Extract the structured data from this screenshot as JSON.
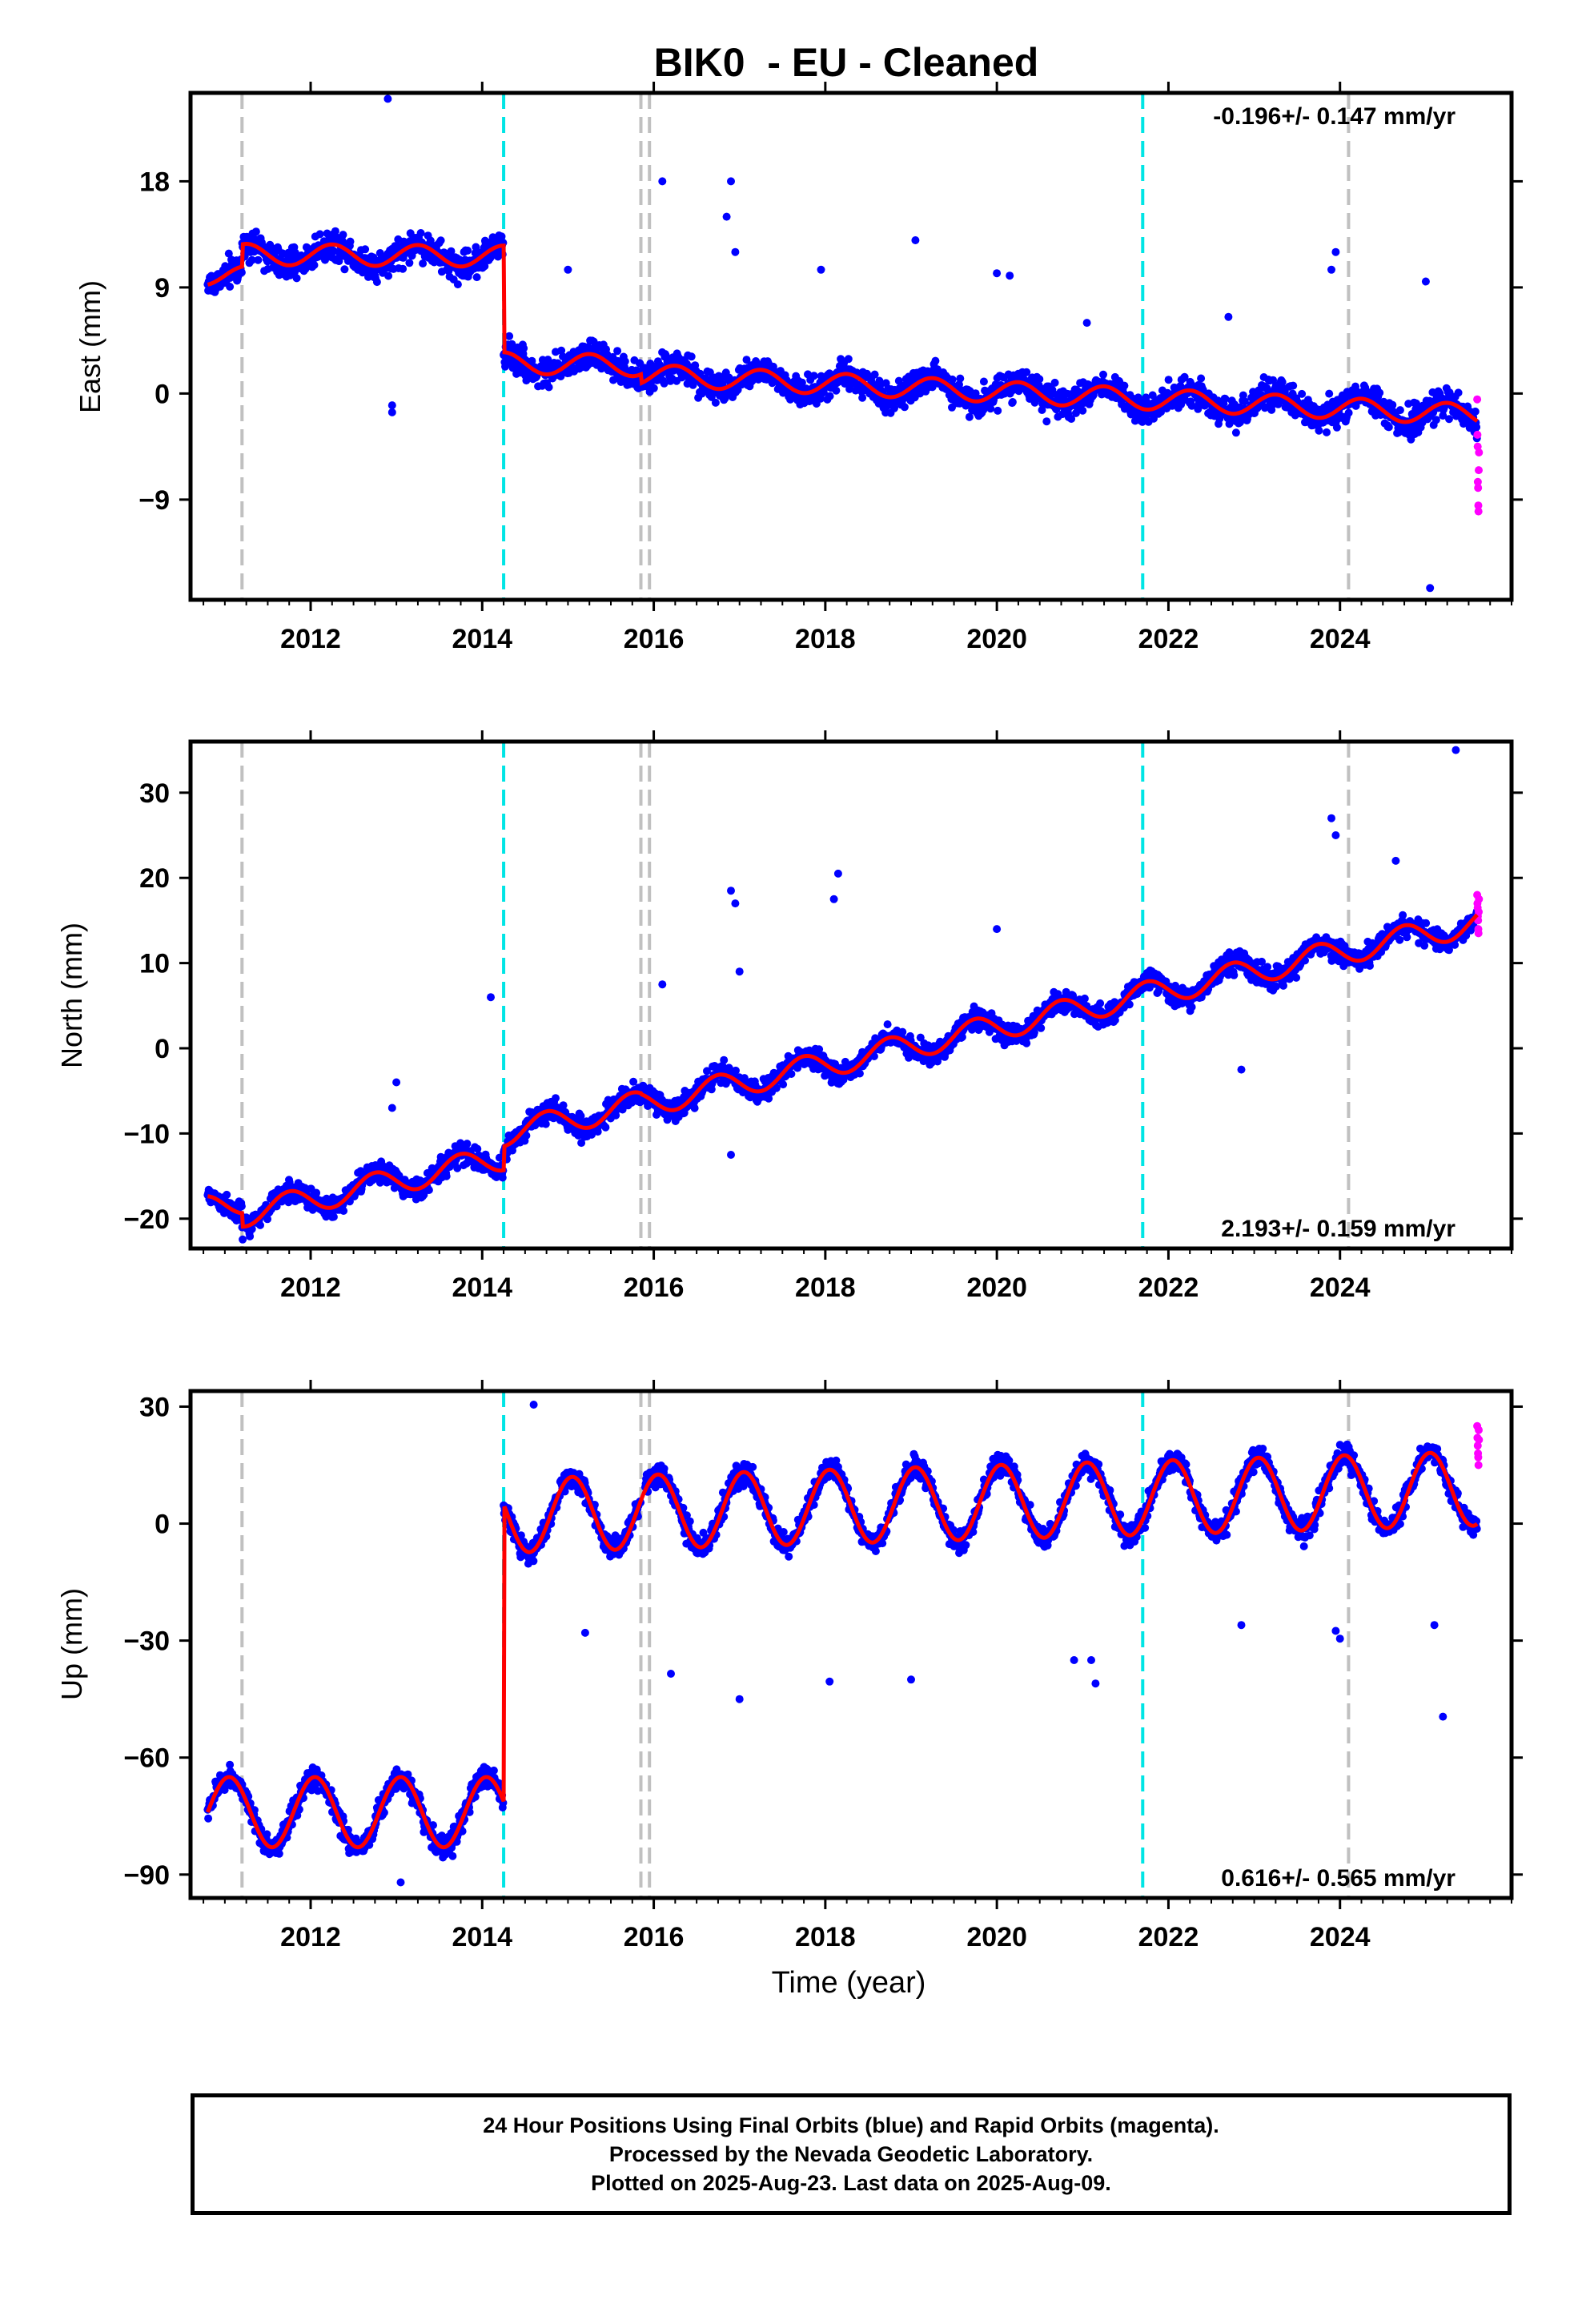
{
  "title": "BIK0  - EU - Cleaned",
  "xlabel": "Time (year)",
  "footer": {
    "lines": [
      "24 Hour Positions Using Final Orbits (blue) and Rapid Orbits (magenta).",
      "Processed by the Nevada Geodetic Laboratory.",
      "Plotted on 2025-Aug-23. Last data on 2025-Aug-09."
    ]
  },
  "colors": {
    "final_orbits": "#0000ff",
    "rapid_orbits": "#ff00ff",
    "model_fit": "#ff0000",
    "equipment_change_line": "#c0c0c0",
    "earthquake_line": "#00e5e5"
  },
  "chart_data": [
    {
      "type": "scatter",
      "component": "east",
      "ylabel": "East (mm)",
      "x_range": [
        2010.6,
        2026.0
      ],
      "ylim": [
        -17.5,
        25.5
      ],
      "x_ticks": [
        2012,
        2014,
        2016,
        2018,
        2020,
        2022,
        2024
      ],
      "y_ticks": [
        -9,
        0,
        9,
        18
      ],
      "rate_label": "-0.196+/- 0.147 mm/yr",
      "rate_position": "top-right",
      "offset_lines_gray": [
        2011.2,
        2015.85,
        2015.95,
        2024.1
      ],
      "offset_lines_cyan": [
        2014.25,
        2021.7
      ],
      "model": {
        "segments": [
          {
            "start": 2010.8,
            "end": 2011.2,
            "base": 10.0,
            "rate": 0.0,
            "amp": 0.8
          },
          {
            "start": 2011.2,
            "end": 2014.25,
            "base": 11.8,
            "rate": -0.05,
            "amp": 0.9
          },
          {
            "start": 2014.25,
            "end": 2015.85,
            "base": 2.6,
            "rate": -0.15,
            "amp": 0.9
          },
          {
            "start": 2015.85,
            "end": 2025.6,
            "base": 1.6,
            "rate": -0.35,
            "amp": 0.9
          }
        ],
        "phase": 0.0
      },
      "scatter_noise": 1.5,
      "outliers": [
        [
          2012.9,
          25.0
        ],
        [
          2012.95,
          -1.0
        ],
        [
          2012.95,
          -1.6
        ],
        [
          2016.1,
          18.0
        ],
        [
          2016.9,
          18.0
        ],
        [
          2016.85,
          15.0
        ],
        [
          2019.05,
          13.0
        ],
        [
          2017.95,
          10.5
        ],
        [
          2020.0,
          10.2
        ],
        [
          2020.15,
          10.0
        ],
        [
          2021.05,
          6.0
        ],
        [
          2022.7,
          6.5
        ],
        [
          2023.95,
          12.0
        ],
        [
          2023.9,
          10.5
        ],
        [
          2025.0,
          9.5
        ],
        [
          2025.05,
          -16.5
        ],
        [
          2015.0,
          10.5
        ],
        [
          2016.95,
          12.0
        ]
      ],
      "rapid": {
        "start": 2025.6,
        "end": 2025.62,
        "values": [
          -0.5,
          -3.5,
          -4.5,
          -7.5,
          -8.0,
          -9.5,
          -10.0,
          -6.5,
          -5.0
        ]
      }
    },
    {
      "type": "scatter",
      "component": "north",
      "ylabel": "North (mm)",
      "x_range": [
        2010.6,
        2026.0
      ],
      "ylim": [
        -23.5,
        36.0
      ],
      "x_ticks": [
        2012,
        2014,
        2016,
        2018,
        2020,
        2022,
        2024
      ],
      "y_ticks": [
        -20,
        -10,
        0,
        10,
        20,
        30
      ],
      "rate_label": "2.193+/- 0.159 mm/yr",
      "rate_position": "bottom-right",
      "offset_lines_gray": [
        2011.2,
        2015.85,
        2015.95,
        2024.1
      ],
      "offset_lines_cyan": [
        2014.25,
        2021.7
      ],
      "model": {
        "segments": [
          {
            "start": 2010.8,
            "end": 2011.2,
            "base": -18.8,
            "rate": 2.193,
            "amp": 1.5
          },
          {
            "start": 2011.2,
            "end": 2014.25,
            "base": -19.5,
            "rate": 2.193,
            "amp": 1.5
          },
          {
            "start": 2014.25,
            "end": 2015.85,
            "base": -10.0,
            "rate": 2.193,
            "amp": 1.5
          },
          {
            "start": 2015.85,
            "end": 2025.6,
            "base": -6.6,
            "rate": 2.193,
            "amp": 1.5
          }
        ],
        "phase": 0.5
      },
      "scatter_noise": 1.5,
      "outliers": [
        [
          2025.35,
          35.0
        ],
        [
          2016.9,
          18.5
        ],
        [
          2016.95,
          17.0
        ],
        [
          2018.15,
          20.5
        ],
        [
          2018.1,
          17.5
        ],
        [
          2023.9,
          27.0
        ],
        [
          2023.95,
          25.0
        ],
        [
          2013.0,
          -4.0
        ],
        [
          2014.1,
          6.0
        ],
        [
          2016.1,
          7.5
        ],
        [
          2017.0,
          9.0
        ],
        [
          2020.0,
          14.0
        ],
        [
          2022.85,
          -2.5
        ],
        [
          2024.65,
          22.0
        ],
        [
          2016.9,
          -12.5
        ],
        [
          2012.95,
          -7.0
        ]
      ],
      "rapid": {
        "start": 2025.6,
        "end": 2025.62,
        "values": [
          18.0,
          17.0,
          16.5,
          15.5,
          15.0,
          14.0,
          13.5,
          16.0,
          17.5
        ]
      }
    },
    {
      "type": "scatter",
      "component": "up",
      "ylabel": "Up (mm)",
      "x_range": [
        2010.6,
        2026.0
      ],
      "ylim": [
        -96.0,
        34.0
      ],
      "x_ticks": [
        2012,
        2014,
        2016,
        2018,
        2020,
        2022,
        2024
      ],
      "y_ticks": [
        -90,
        -60,
        -30,
        0,
        30
      ],
      "rate_label": "0.616+/- 0.565 mm/yr",
      "rate_position": "bottom-right",
      "offset_lines_gray": [
        2011.2,
        2015.85,
        2015.95,
        2024.1
      ],
      "offset_lines_cyan": [
        2014.25,
        2021.7
      ],
      "model": {
        "segments": [
          {
            "start": 2010.8,
            "end": 2014.25,
            "base": -74.0,
            "rate": 0.0,
            "amp": 9.0
          },
          {
            "start": 2014.25,
            "end": 2025.6,
            "base": 2.0,
            "rate": 0.616,
            "amp": 9.5
          }
        ],
        "phase": 0.8
      },
      "scatter_noise": 3.5,
      "outliers": [
        [
          2014.6,
          30.5
        ],
        [
          2025.2,
          -49.5
        ],
        [
          2017.0,
          -45.0
        ],
        [
          2019.0,
          -40.0
        ],
        [
          2018.05,
          -40.5
        ],
        [
          2021.15,
          -41.0
        ],
        [
          2021.1,
          -35.0
        ],
        [
          2016.2,
          -38.5
        ],
        [
          2020.9,
          -35.0
        ],
        [
          2015.2,
          -28.0
        ],
        [
          2024.0,
          -29.5
        ],
        [
          2023.95,
          -27.5
        ],
        [
          2025.1,
          -26.0
        ],
        [
          2022.85,
          -26.0
        ],
        [
          2013.05,
          -92.0
        ]
      ],
      "rapid": {
        "start": 2025.6,
        "end": 2025.62,
        "values": [
          25.0,
          22.0,
          20.0,
          18.0,
          17.0,
          15.0,
          24.0,
          21.5
        ]
      }
    }
  ]
}
